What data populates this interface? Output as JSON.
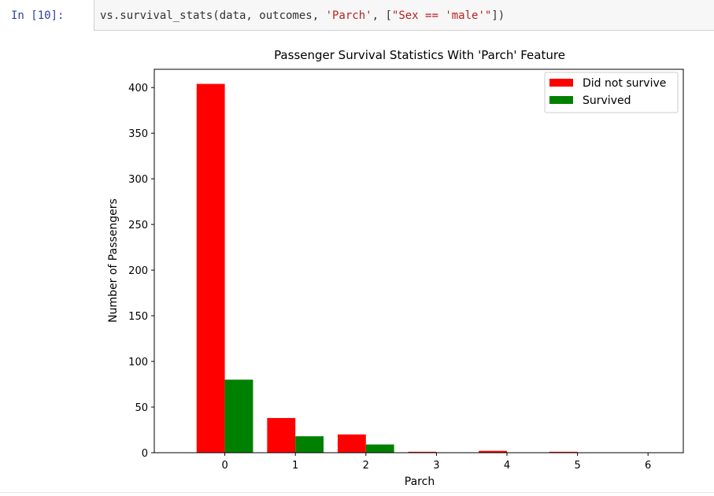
{
  "cell": {
    "prompt": "In  [10]:",
    "code_fn": "vs.survival_stats(data, outcomes, ",
    "code_arg1": "'Parch'",
    "code_mid": ", [",
    "code_arg2": "\"Sex == 'male'\"",
    "code_end": "])"
  },
  "colors": {
    "did_not_survive": "#ff0000",
    "survived": "#008000"
  },
  "chart_data": {
    "type": "bar",
    "title": "Passenger Survival Statistics With 'Parch' Feature",
    "xlabel": "Parch",
    "ylabel": "Number of Passengers",
    "xlim": [
      -1,
      6.5
    ],
    "ylim": [
      0,
      420
    ],
    "xticks": [
      0,
      1,
      2,
      3,
      4,
      5,
      6
    ],
    "yticks": [
      0,
      50,
      100,
      150,
      200,
      250,
      300,
      350,
      400
    ],
    "legend_position": "top-right",
    "series": [
      {
        "name": "Did not survive",
        "color": "#ff0000",
        "points": [
          {
            "x": 0,
            "value": 404
          },
          {
            "x": 1,
            "value": 38
          },
          {
            "x": 2,
            "value": 20
          },
          {
            "x": 3,
            "value": 1
          },
          {
            "x": 4,
            "value": 2
          },
          {
            "x": 5,
            "value": 1
          }
        ]
      },
      {
        "name": "Survived",
        "color": "#008000",
        "points": [
          {
            "x": 0,
            "value": 80
          },
          {
            "x": 1,
            "value": 18
          },
          {
            "x": 2,
            "value": 9
          },
          {
            "x": 3,
            "value": 0
          },
          {
            "x": 4,
            "value": 0
          },
          {
            "x": 5,
            "value": 0
          }
        ]
      }
    ]
  }
}
